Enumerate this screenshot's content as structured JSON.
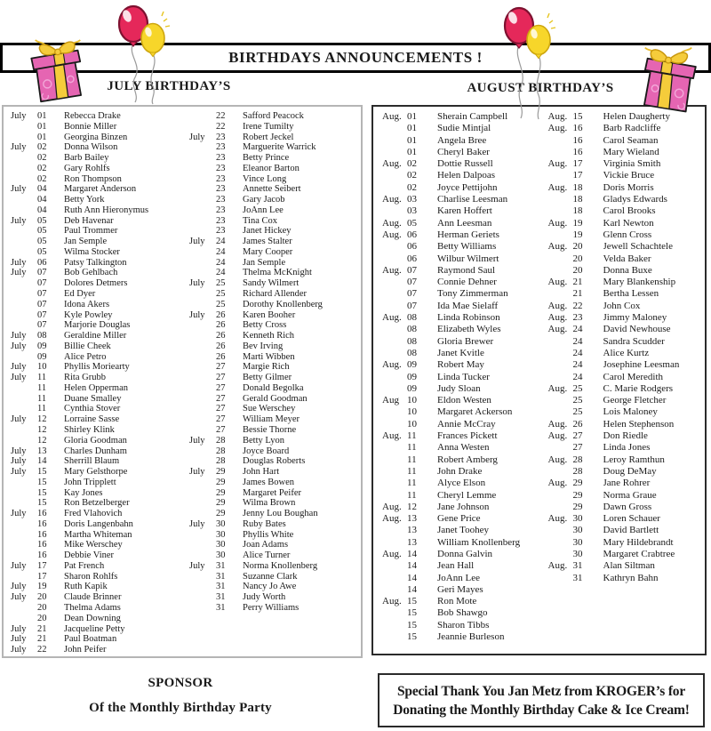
{
  "banner": {
    "title": "BIRTHDAYS ANNOUNCEMENTS !"
  },
  "colors": {
    "banner_border": "#000000",
    "july_box_border": "#b5b5b5",
    "august_box_border": "#2b2b2b",
    "balloon_pink": "#e5285a",
    "balloon_yellow": "#f7d62a",
    "gift_pink": "#e565b2",
    "ribbon_yellow": "#f5cc3b",
    "text": "#1a1a1a"
  },
  "icons": {
    "left_balloons": "balloons-icon",
    "right_balloons": "balloons-icon",
    "left_gift": "gift-icon",
    "right_gift": "gift-icon"
  },
  "july": {
    "heading": "JULY BIRTHDAY’S",
    "col1": [
      {
        "m": "July",
        "d": "01",
        "n": "Rebecca Drake"
      },
      {
        "m": "",
        "d": "01",
        "n": "Bonnie Miller"
      },
      {
        "m": "",
        "d": "01",
        "n": "Georgina Binzen"
      },
      {
        "m": "July",
        "d": "02",
        "n": "Donna Wilson"
      },
      {
        "m": "",
        "d": "02",
        "n": "Barb Bailey"
      },
      {
        "m": "",
        "d": "02",
        "n": "Gary Rohlfs"
      },
      {
        "m": "",
        "d": "02",
        "n": "Ron Thompson"
      },
      {
        "m": "July",
        "d": "04",
        "n": "Margaret Anderson"
      },
      {
        "m": "",
        "d": "04",
        "n": "Betty York"
      },
      {
        "m": "",
        "d": "04",
        "n": "Ruth Ann Hieronymus"
      },
      {
        "m": "July",
        "d": "05",
        "n": "Deb Havenar"
      },
      {
        "m": "",
        "d": "05",
        "n": "Paul Trommer"
      },
      {
        "m": "",
        "d": "05",
        "n": "Jan Semple"
      },
      {
        "m": "",
        "d": "05",
        "n": "Wilma Stocker"
      },
      {
        "m": "July",
        "d": "06",
        "n": "Patsy Talkington"
      },
      {
        "m": "July",
        "d": "07",
        "n": "Bob Gehlbach"
      },
      {
        "m": "",
        "d": "07",
        "n": "Dolores Detmers"
      },
      {
        "m": "",
        "d": "07",
        "n": "Ed Dyer"
      },
      {
        "m": "",
        "d": "07",
        "n": "Idona Akers"
      },
      {
        "m": "",
        "d": "07",
        "n": "Kyle Powley"
      },
      {
        "m": "",
        "d": "07",
        "n": "Marjorie Douglas"
      },
      {
        "m": "July",
        "d": "08",
        "n": "Geraldine Miller"
      },
      {
        "m": "July",
        "d": "09",
        "n": "Billie Cheek"
      },
      {
        "m": "",
        "d": "09",
        "n": "Alice Petro"
      },
      {
        "m": "July",
        "d": "10",
        "n": "Phyllis Moriearty"
      },
      {
        "m": "July",
        "d": "11",
        "n": "Rita Grubb"
      },
      {
        "m": "",
        "d": "11",
        "n": "Helen Opperman"
      },
      {
        "m": "",
        "d": "11",
        "n": "Duane Smalley"
      },
      {
        "m": "",
        "d": "11",
        "n": "Cynthia Stover"
      },
      {
        "m": "July",
        "d": "12",
        "n": "Lorraine Sasse"
      },
      {
        "m": "",
        "d": "12",
        "n": "Shirley Klink"
      },
      {
        "m": "",
        "d": "12",
        "n": "Gloria Goodman"
      },
      {
        "m": "July",
        "d": "13",
        "n": "Charles Dunham"
      },
      {
        "m": "July",
        "d": "14",
        "n": "Sherrill Blaum"
      },
      {
        "m": "July",
        "d": "15",
        "n": "Mary Gelsthorpe"
      },
      {
        "m": "",
        "d": "15",
        "n": "John Tripplett"
      },
      {
        "m": "",
        "d": "15",
        "n": "Kay Jones"
      },
      {
        "m": "",
        "d": "15",
        "n": "Ron Betzelberger"
      },
      {
        "m": "July",
        "d": "16",
        "n": "Fred Vlahovich"
      },
      {
        "m": "",
        "d": "16",
        "n": "Doris Langenbahn"
      },
      {
        "m": "",
        "d": "16",
        "n": "Martha Whiteman"
      },
      {
        "m": "",
        "d": "16",
        "n": "Mike Werschey"
      },
      {
        "m": "",
        "d": "16",
        "n": "Debbie Viner"
      },
      {
        "m": "July",
        "d": "17",
        "n": "Pat French"
      },
      {
        "m": "",
        "d": "17",
        "n": "Sharon Rohlfs"
      },
      {
        "m": "July",
        "d": "19",
        "n": "Ruth Kapik"
      },
      {
        "m": "July",
        "d": "20",
        "n": "Claude Brinner"
      },
      {
        "m": "",
        "d": "20",
        "n": "Thelma Adams"
      },
      {
        "m": "",
        "d": "20",
        "n": "Dean Downing"
      },
      {
        "m": "July",
        "d": "21",
        "n": "Jacqueline Petty"
      },
      {
        "m": "July",
        "d": "21",
        "n": "Paul Boatman"
      },
      {
        "m": "July",
        "d": "22",
        "n": "John Peifer"
      }
    ],
    "col2": [
      {
        "m": "",
        "d": "22",
        "n": "Safford Peacock"
      },
      {
        "m": "",
        "d": "22",
        "n": "Irene Tumilty"
      },
      {
        "m": "July",
        "d": "23",
        "n": "Robert Jeckel"
      },
      {
        "m": "",
        "d": "23",
        "n": "Marguerite Warrick"
      },
      {
        "m": "",
        "d": "23",
        "n": "Betty Prince"
      },
      {
        "m": "",
        "d": "23",
        "n": "Eleanor Barton"
      },
      {
        "m": "",
        "d": "23",
        "n": "Vince Long"
      },
      {
        "m": "",
        "d": "23",
        "n": "Annette Seibert"
      },
      {
        "m": "",
        "d": "23",
        "n": "Gary Jacob"
      },
      {
        "m": "",
        "d": "23",
        "n": "JoAnn Lee"
      },
      {
        "m": "",
        "d": "23",
        "n": "Tina Cox"
      },
      {
        "m": "",
        "d": "23",
        "n": "Janet Hickey"
      },
      {
        "m": "July",
        "d": "24",
        "n": "James Stalter"
      },
      {
        "m": "",
        "d": "24",
        "n": "Mary Cooper"
      },
      {
        "m": "",
        "d": "24",
        "n": "Jan Semple"
      },
      {
        "m": "",
        "d": "24",
        "n": "Thelma McKnight"
      },
      {
        "m": "July",
        "d": "25",
        "n": "Sandy Wilmert"
      },
      {
        "m": "",
        "d": "25",
        "n": "Richard Allender"
      },
      {
        "m": "",
        "d": "25",
        "n": "Dorothy Knollenberg"
      },
      {
        "m": "July",
        "d": "26",
        "n": "Karen Booher"
      },
      {
        "m": "",
        "d": "26",
        "n": "Betty Cross"
      },
      {
        "m": "",
        "d": "26",
        "n": "Kenneth Rich"
      },
      {
        "m": "",
        "d": "26",
        "n": "Bev Irving"
      },
      {
        "m": "",
        "d": "26",
        "n": "Marti Wibben"
      },
      {
        "m": "",
        "d": "27",
        "n": "Margie Rich"
      },
      {
        "m": "",
        "d": "27",
        "n": "Betty Gilmer"
      },
      {
        "m": "",
        "d": "27",
        "n": "Donald Begolka"
      },
      {
        "m": "",
        "d": "27",
        "n": "Gerald Goodman"
      },
      {
        "m": "",
        "d": "27",
        "n": "Sue Werschey"
      },
      {
        "m": "",
        "d": "27",
        "n": "William Meyer"
      },
      {
        "m": "",
        "d": "27",
        "n": "Bessie Thorne"
      },
      {
        "m": "July",
        "d": "28",
        "n": "Betty Lyon"
      },
      {
        "m": "",
        "d": "28",
        "n": "Joyce Board"
      },
      {
        "m": "",
        "d": "28",
        "n": "Douglas Roberts"
      },
      {
        "m": "July",
        "d": "29",
        "n": "John Hart"
      },
      {
        "m": "",
        "d": "29",
        "n": "James Bowen"
      },
      {
        "m": "",
        "d": "29",
        "n": "Margaret Peifer"
      },
      {
        "m": "",
        "d": "29",
        "n": "Wilma Brown"
      },
      {
        "m": "",
        "d": "29",
        "n": "Jenny Lou Boughan"
      },
      {
        "m": "July",
        "d": "30",
        "n": "Ruby Bates"
      },
      {
        "m": "",
        "d": "30",
        "n": "Phyllis White"
      },
      {
        "m": "",
        "d": "30",
        "n": "Joan Adams"
      },
      {
        "m": "",
        "d": "30",
        "n": "Alice Turner"
      },
      {
        "m": "July",
        "d": "31",
        "n": "Norma Knollenberg"
      },
      {
        "m": "",
        "d": "31",
        "n": "Suzanne Clark"
      },
      {
        "m": "",
        "d": "31",
        "n": "Nancy Jo Awe"
      },
      {
        "m": "",
        "d": "31",
        "n": "Judy Worth"
      },
      {
        "m": "",
        "d": "31",
        "n": "Perry Williams"
      }
    ]
  },
  "august": {
    "heading": "AUGUST BIRTHDAY’S",
    "col1": [
      {
        "m": "Aug.",
        "d": "01",
        "n": "Sherain Campbell"
      },
      {
        "m": "",
        "d": "01",
        "n": "Sudie Mintjal"
      },
      {
        "m": "",
        "d": "01",
        "n": "Angela Bree"
      },
      {
        "m": "",
        "d": "01",
        "n": "Cheryl Baker"
      },
      {
        "m": "Aug.",
        "d": "02",
        "n": "Dottie Russell"
      },
      {
        "m": "",
        "d": "02",
        "n": "Helen Dalpoas"
      },
      {
        "m": "",
        "d": "02",
        "n": "Joyce Pettijohn"
      },
      {
        "m": "Aug.",
        "d": "03",
        "n": "Charlise Leesman"
      },
      {
        "m": "",
        "d": "03",
        "n": "Karen Hoffert"
      },
      {
        "m": "Aug.",
        "d": "05",
        "n": "Ann Leesman"
      },
      {
        "m": "Aug.",
        "d": "06",
        "n": "Herman Geriets"
      },
      {
        "m": "",
        "d": "06",
        "n": "Betty Williams"
      },
      {
        "m": "",
        "d": "06",
        "n": "Wilbur Wilmert"
      },
      {
        "m": "Aug.",
        "d": "07",
        "n": "Raymond Saul"
      },
      {
        "m": "",
        "d": "07",
        "n": "Connie Dehner"
      },
      {
        "m": "",
        "d": "07",
        "n": "Tony Zimmerman"
      },
      {
        "m": "",
        "d": "07",
        "n": "Ida Mae Sielaff"
      },
      {
        "m": "Aug.",
        "d": "08",
        "n": "Linda Robinson"
      },
      {
        "m": "",
        "d": "08",
        "n": "Elizabeth Wyles"
      },
      {
        "m": "",
        "d": "08",
        "n": "Gloria Brewer"
      },
      {
        "m": "",
        "d": "08",
        "n": "Janet Kvitle"
      },
      {
        "m": "Aug.",
        "d": "09",
        "n": "Robert May"
      },
      {
        "m": "",
        "d": "09",
        "n": "Linda Tucker"
      },
      {
        "m": "",
        "d": "09",
        "n": "Judy Sloan"
      },
      {
        "m": "Aug",
        "d": "10",
        "n": "Eldon Westen"
      },
      {
        "m": "",
        "d": "10",
        "n": "Margaret Ackerson"
      },
      {
        "m": "",
        "d": "10",
        "n": "Annie McCray"
      },
      {
        "m": "Aug.",
        "d": "11",
        "n": "Frances Pickett"
      },
      {
        "m": "",
        "d": "11",
        "n": "Anna Westen"
      },
      {
        "m": "",
        "d": "11",
        "n": "Robert Amberg"
      },
      {
        "m": "",
        "d": "11",
        "n": "John Drake"
      },
      {
        "m": "",
        "d": "11",
        "n": "Alyce Elson"
      },
      {
        "m": "",
        "d": "11",
        "n": "Cheryl Lemme"
      },
      {
        "m": "Aug.",
        "d": "12",
        "n": "Jane Johnson"
      },
      {
        "m": "Aug.",
        "d": "13",
        "n": "Gene Price"
      },
      {
        "m": "",
        "d": "13",
        "n": "Janet Toohey"
      },
      {
        "m": "",
        "d": "13",
        "n": "William Knollenberg"
      },
      {
        "m": "Aug.",
        "d": "14",
        "n": "Donna Galvin"
      },
      {
        "m": "",
        "d": "14",
        "n": "Jean Hall"
      },
      {
        "m": "",
        "d": "14",
        "n": "JoAnn Lee"
      },
      {
        "m": "",
        "d": "14",
        "n": "Geri Mayes"
      },
      {
        "m": "Aug.",
        "d": "15",
        "n": "Ron Mote"
      },
      {
        "m": "",
        "d": "15",
        "n": "Bob Shawgo"
      },
      {
        "m": "",
        "d": "15",
        "n": "Sharon Tibbs"
      },
      {
        "m": "",
        "d": "15",
        "n": "Jeannie Burleson"
      }
    ],
    "col2": [
      {
        "m": "Aug.",
        "d": "15",
        "n": "Helen Daugherty"
      },
      {
        "m": "Aug.",
        "d": "16",
        "n": "Barb Radcliffe"
      },
      {
        "m": "",
        "d": "16",
        "n": "Carol Seaman"
      },
      {
        "m": "",
        "d": "16",
        "n": "Mary Wieland"
      },
      {
        "m": "Aug.",
        "d": "17",
        "n": "Virginia Smith"
      },
      {
        "m": "",
        "d": "17",
        "n": "Vickie Bruce"
      },
      {
        "m": "Aug.",
        "d": "18",
        "n": "Doris Morris"
      },
      {
        "m": "",
        "d": "18",
        "n": "Gladys Edwards"
      },
      {
        "m": "",
        "d": "18",
        "n": "Carol Brooks"
      },
      {
        "m": "Aug.",
        "d": "19",
        "n": "Karl Newton"
      },
      {
        "m": "",
        "d": "19",
        "n": "Glenn Cross"
      },
      {
        "m": "Aug.",
        "d": "20",
        "n": "Jewell Schachtele"
      },
      {
        "m": "",
        "d": "20",
        "n": "Velda Baker"
      },
      {
        "m": "",
        "d": "20",
        "n": "Donna Buxe"
      },
      {
        "m": "Aug.",
        "d": "21",
        "n": "Mary Blankenship"
      },
      {
        "m": "",
        "d": "21",
        "n": "Bertha Lessen"
      },
      {
        "m": "Aug.",
        "d": "22",
        "n": "John Cox"
      },
      {
        "m": "Aug.",
        "d": "23",
        "n": "Jimmy Maloney"
      },
      {
        "m": "Aug.",
        "d": "24",
        "n": "David Newhouse"
      },
      {
        "m": "",
        "d": "24",
        "n": "Sandra Scudder"
      },
      {
        "m": "",
        "d": "24",
        "n": "Alice Kurtz"
      },
      {
        "m": "",
        "d": "24",
        "n": "Josephine Leesman"
      },
      {
        "m": "",
        "d": "24",
        "n": "Carol Meredith"
      },
      {
        "m": "Aug.",
        "d": "25",
        "n": "C. Marie Rodgers"
      },
      {
        "m": "",
        "d": "25",
        "n": "George Fletcher"
      },
      {
        "m": "",
        "d": "25",
        "n": "Lois Maloney"
      },
      {
        "m": "Aug.",
        "d": "26",
        "n": "Helen Stephenson"
      },
      {
        "m": "Aug.",
        "d": "27",
        "n": "Don Riedle"
      },
      {
        "m": "",
        "d": "27",
        "n": "Linda Jones"
      },
      {
        "m": "Aug.",
        "d": "28",
        "n": "Leroy Ramthun"
      },
      {
        "m": "",
        "d": "28",
        "n": "Doug DeMay"
      },
      {
        "m": "Aug.",
        "d": "29",
        "n": "Jane Rohrer"
      },
      {
        "m": "",
        "d": "29",
        "n": "Norma Graue"
      },
      {
        "m": "",
        "d": "29",
        "n": "Dawn Gross"
      },
      {
        "m": "Aug.",
        "d": "30",
        "n": "Loren Schauer"
      },
      {
        "m": "",
        "d": "30",
        "n": "David Bartlett"
      },
      {
        "m": "",
        "d": "30",
        "n": "Mary Hildebrandt"
      },
      {
        "m": "",
        "d": "30",
        "n": "Margaret Crabtree"
      },
      {
        "m": "Aug.",
        "d": "31",
        "n": "Alan Siltman"
      },
      {
        "m": "",
        "d": "31",
        "n": "Kathryn Bahn"
      }
    ]
  },
  "footer": {
    "sponsor_line1": "SPONSOR",
    "sponsor_line2": "Of the Monthly Birthday Party",
    "thanks_line1": "Special Thank You Jan Metz from KROGER’s for",
    "thanks_line2": "Donating the Monthly Birthday Cake & Ice Cream!"
  }
}
